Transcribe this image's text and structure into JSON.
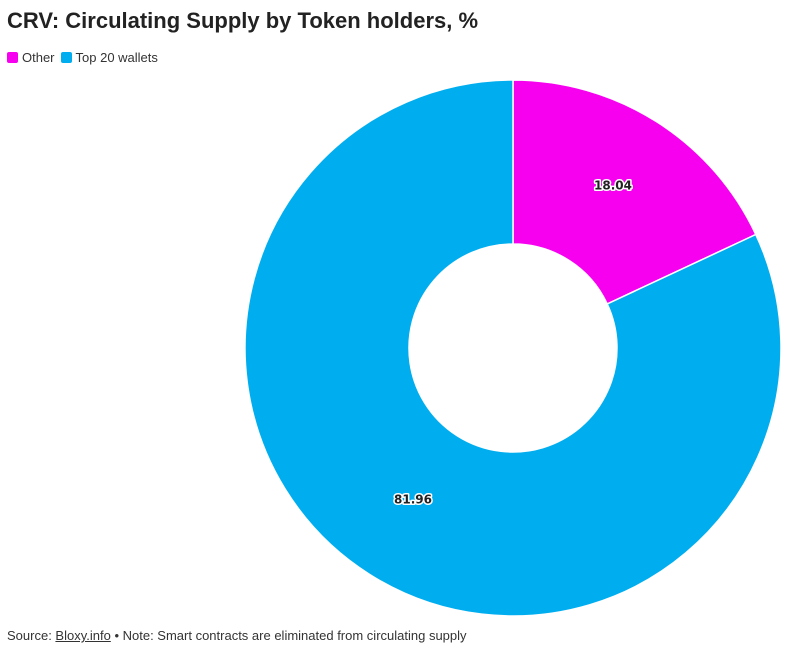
{
  "chart_data": {
    "type": "pie",
    "title": "CRV: Circulating Supply by Token holders, %",
    "donut": true,
    "slices": [
      {
        "name": "Other",
        "value": 18.04,
        "label": "18.04",
        "color": "#f700f0"
      },
      {
        "name": "Top 20 wallets",
        "value": 81.96,
        "label": "81.96",
        "color": "#00aeef"
      }
    ],
    "legend": [
      {
        "name": "Other",
        "color": "#f700f0"
      },
      {
        "name": "Top 20 wallets",
        "color": "#00aeef"
      }
    ],
    "legend_position": "top-left"
  },
  "footer": {
    "source_prefix": "Source: ",
    "source_link": "Bloxy.info",
    "note": " • Note: Smart contracts are eliminated from circulating supply"
  }
}
